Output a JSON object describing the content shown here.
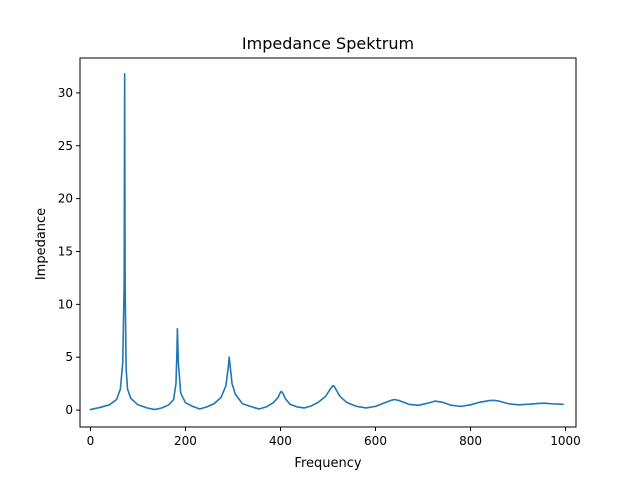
{
  "chart_data": {
    "type": "line",
    "title": "Impedance Spektrum",
    "xlabel": "Frequency",
    "ylabel": "Impedance",
    "xlim": [
      -22,
      1022
    ],
    "ylim": [
      -1.6,
      33.3
    ],
    "xticks": [
      0,
      200,
      400,
      600,
      800,
      1000
    ],
    "yticks": [
      0,
      5,
      10,
      15,
      20,
      25,
      30
    ],
    "grid": false,
    "line_color": "#1f77b4",
    "series": [
      {
        "x": [
          0,
          20,
          40,
          55,
          63,
          68,
          71,
          72,
          73,
          75,
          78,
          85,
          100,
          120,
          135,
          150,
          165,
          175,
          180,
          182,
          183,
          185,
          190,
          200,
          215,
          230,
          245,
          260,
          275,
          285,
          290,
          292,
          294,
          298,
          305,
          320,
          340,
          355,
          370,
          385,
          395,
          400,
          402,
          405,
          410,
          420,
          435,
          450,
          465,
          480,
          495,
          505,
          510,
          512,
          515,
          525,
          540,
          560,
          580,
          600,
          620,
          635,
          640,
          650,
          670,
          690,
          710,
          725,
          740,
          760,
          780,
          800,
          820,
          840,
          850,
          860,
          880,
          900,
          920,
          940,
          955,
          970,
          985,
          995
        ],
        "y": [
          0.05,
          0.25,
          0.5,
          1.0,
          2.0,
          4.5,
          12.0,
          31.8,
          12.0,
          4.0,
          2.0,
          1.1,
          0.5,
          0.2,
          0.05,
          0.2,
          0.5,
          1.0,
          2.5,
          5.5,
          7.7,
          4.5,
          1.6,
          0.7,
          0.35,
          0.1,
          0.3,
          0.6,
          1.2,
          2.3,
          4.0,
          5.0,
          4.2,
          2.5,
          1.5,
          0.6,
          0.3,
          0.1,
          0.3,
          0.7,
          1.2,
          1.7,
          1.75,
          1.6,
          1.1,
          0.55,
          0.3,
          0.2,
          0.4,
          0.75,
          1.3,
          2.0,
          2.3,
          2.3,
          2.1,
          1.3,
          0.7,
          0.35,
          0.2,
          0.35,
          0.7,
          0.95,
          1.0,
          0.9,
          0.55,
          0.45,
          0.65,
          0.85,
          0.75,
          0.45,
          0.35,
          0.5,
          0.75,
          0.9,
          0.92,
          0.85,
          0.6,
          0.5,
          0.55,
          0.62,
          0.65,
          0.6,
          0.57,
          0.55
        ]
      }
    ]
  }
}
